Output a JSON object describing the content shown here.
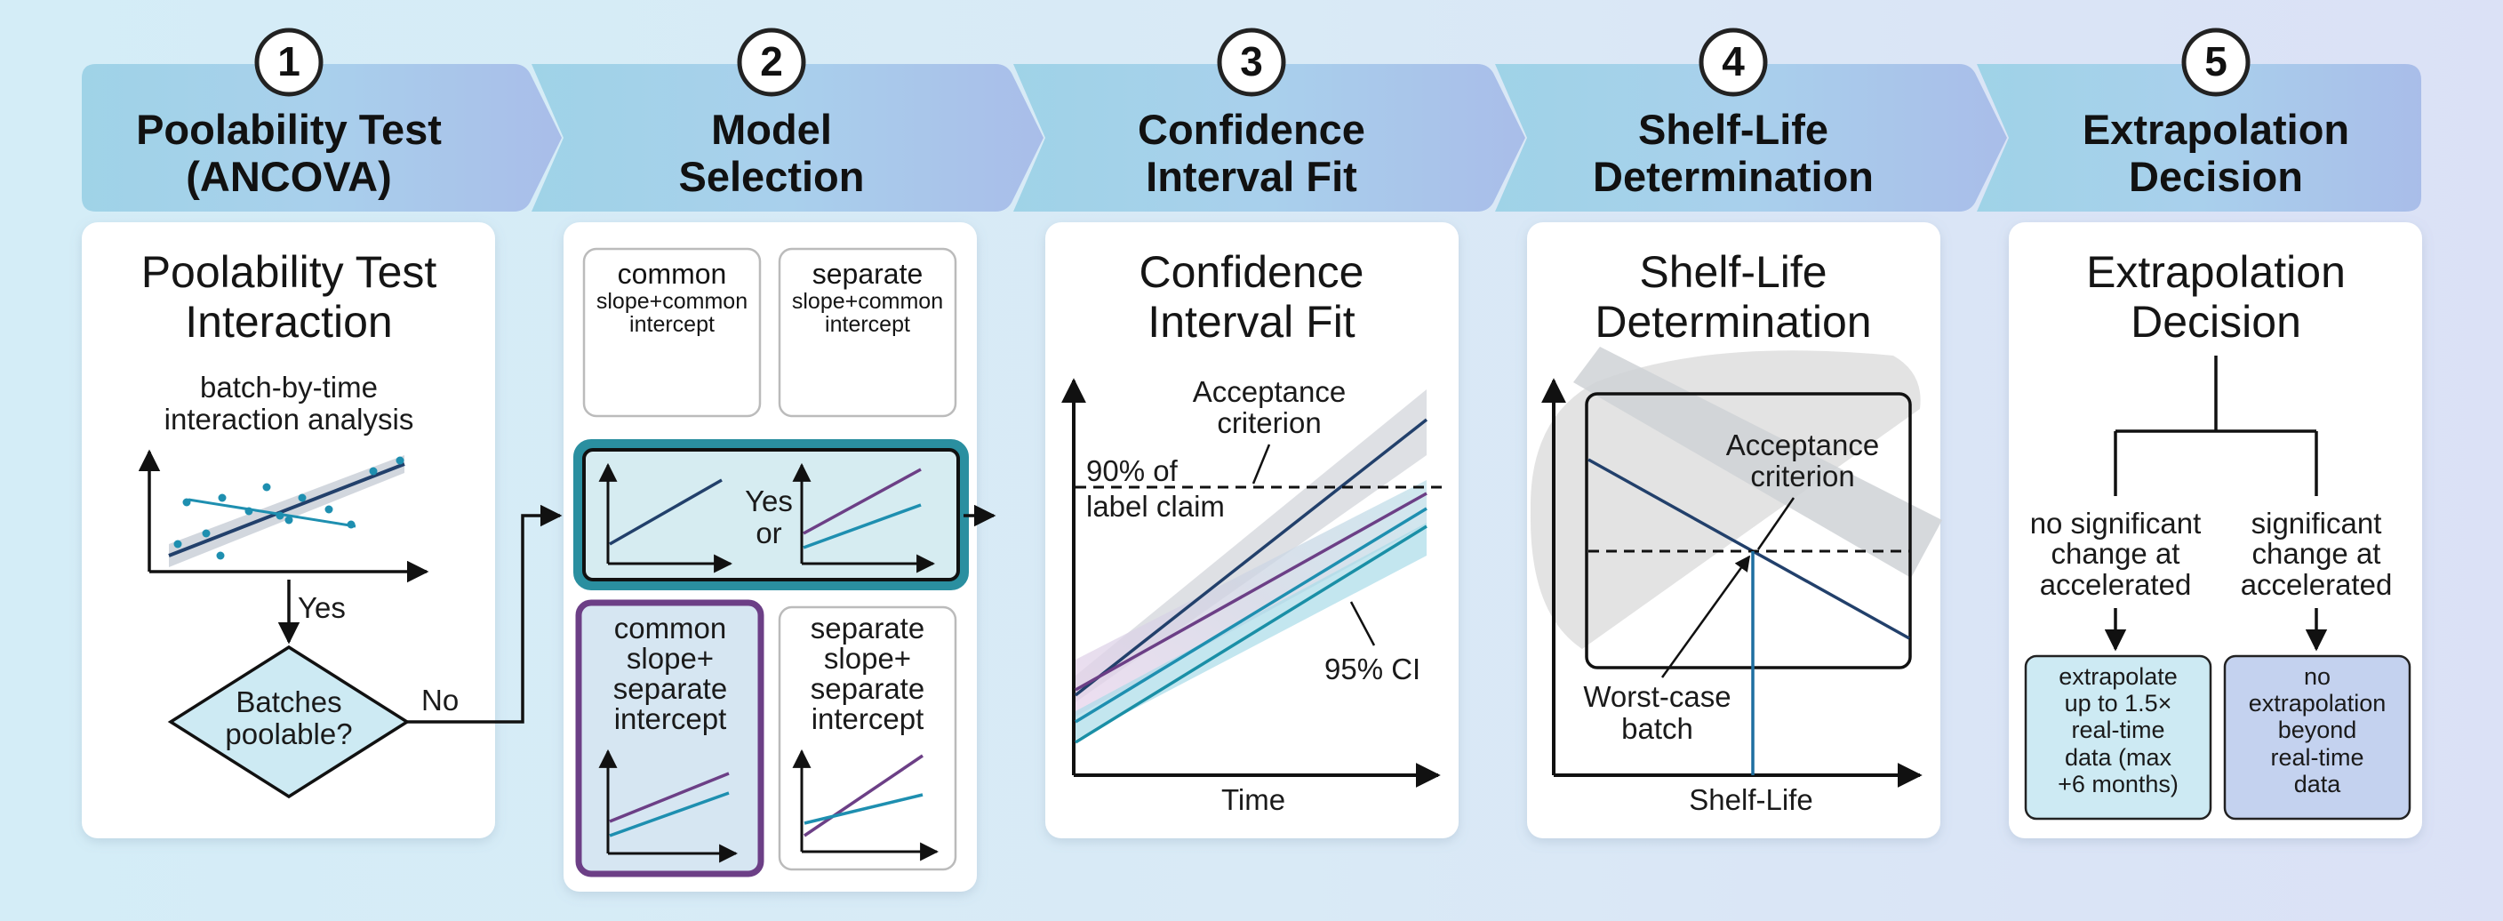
{
  "steps": [
    {
      "number": "1",
      "title_line1": "Poolability Test",
      "title_line2": "(ANCOVA)"
    },
    {
      "number": "2",
      "title_line1": "Model",
      "title_line2": "Selection"
    },
    {
      "number": "3",
      "title_line1": "Confidence",
      "title_line2": "Interval Fit"
    },
    {
      "number": "4",
      "title_line1": "Shelf-Life",
      "title_line2": "Determination"
    },
    {
      "number": "5",
      "title_line1": "Extrapolation",
      "title_line2": "Decision"
    }
  ],
  "panel1": {
    "title_line1": "Poolability Test",
    "title_line2": "Interaction",
    "analysis_line1": "batch-by-time",
    "analysis_line2": "interaction analysis",
    "yes_label": "Yes",
    "decision_line1": "Batches",
    "decision_line2": "poolable?",
    "no_label": "No"
  },
  "panel2": {
    "box1": [
      "common",
      "slope+common",
      "intercept"
    ],
    "box2": [
      "separate",
      "slope+common",
      "intercept"
    ],
    "yes_or": [
      "Yes",
      "or"
    ],
    "box3": [
      "common",
      "slope+",
      "separate",
      "intercept"
    ],
    "box4": [
      "separate",
      "slope+",
      "separate",
      "intercept"
    ]
  },
  "panel3": {
    "title_line1": "Confidence",
    "title_line2": "Interval Fit",
    "acceptance_line1": "Acceptance",
    "acceptance_line2": "criterion",
    "label_claim_line1": "90% of",
    "label_claim_line2": "label claim",
    "ci_label": "95% CI",
    "x_label": "Time"
  },
  "panel4": {
    "title_line1": "Shelf-Life",
    "title_line2": "Determination",
    "acceptance_line1": "Acceptance",
    "acceptance_line2": "criterion",
    "worst_line1": "Worst-case",
    "worst_line2": "batch",
    "x_label": "Shelf-Life"
  },
  "panel5": {
    "title_line1": "Extrapolation",
    "title_line2": "Decision",
    "left_condition": [
      "no significant",
      "change at",
      "accelerated"
    ],
    "right_condition": [
      "significant",
      "change at",
      "accelerated"
    ],
    "left_outcome": [
      "extrapolate",
      "up to 1.5×",
      "real-time",
      "data (max",
      "+6 months)"
    ],
    "right_outcome": [
      "no",
      "extrapolation",
      "beyond",
      "real-time",
      "data"
    ]
  },
  "colors": {
    "navy": "#22406b",
    "teal": "#1e8fb0",
    "purple": "#6c3f86",
    "highlight_teal": "#2a8fa0",
    "banner": "#a8d6e8"
  }
}
